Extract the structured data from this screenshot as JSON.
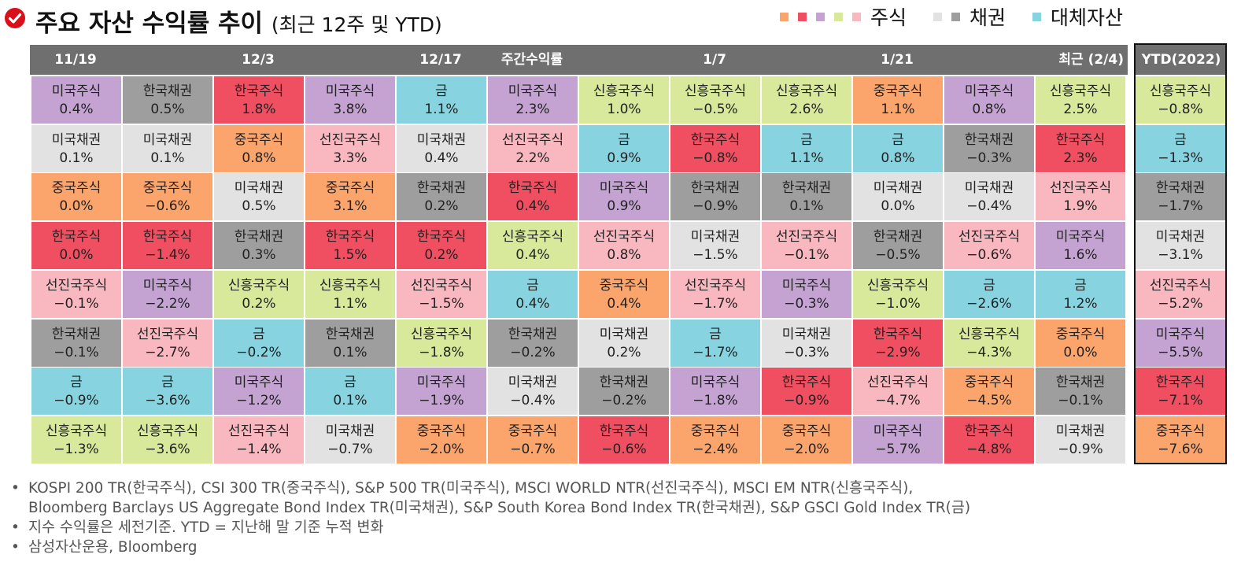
{
  "title": "주요 자산 수익률 추이",
  "subtitle": "(최근 12주 및 YTD)",
  "legend": [
    {
      "label": "주식",
      "colors": [
        "#fba56d",
        "#ef4f60",
        "#c4a3d3",
        "#d8e99c",
        "#f9b8c0"
      ]
    },
    {
      "label": "채권",
      "colors": [
        "#e2e2e2",
        "#9e9e9e"
      ]
    },
    {
      "label": "대체자산",
      "colors": [
        "#87d4e0"
      ]
    }
  ],
  "colors": {
    "한국주식": "#ef4f60",
    "중국주식": "#fba56d",
    "미국주식": "#c4a3d3",
    "선진국주식": "#f9b8c0",
    "신흥국주식": "#d8e99c",
    "미국채권": "#e2e2e2",
    "한국채권": "#9e9e9e",
    "금": "#87d4e0",
    "header": "#6f6f6f",
    "accent": "#d8101c"
  },
  "chart_data": {
    "type": "table",
    "title": "주요 자산 수익률 추이 (최근 12주 및 YTD)",
    "header_labels": [
      {
        "text": "11/19",
        "col": 0,
        "align": "center"
      },
      {
        "text": "12/3",
        "col": 2,
        "align": "center"
      },
      {
        "text": "12/17",
        "col": 4,
        "align": "center"
      },
      {
        "text": "주간수익률",
        "col": 5,
        "align": "center"
      },
      {
        "text": "1/7",
        "col": 7,
        "align": "center"
      },
      {
        "text": "1/21",
        "col": 9,
        "align": "center"
      },
      {
        "text": "최근 (2/4)",
        "col": 11,
        "align": "right"
      }
    ],
    "ytd_label": "YTD(2022)",
    "weeks": [
      [
        [
          "미국주식",
          "0.4%"
        ],
        [
          "미국채권",
          "0.1%"
        ],
        [
          "중국주식",
          "0.0%"
        ],
        [
          "한국주식",
          "0.0%"
        ],
        [
          "선진국주식",
          "-0.1%"
        ],
        [
          "한국채권",
          "-0.1%"
        ],
        [
          "금",
          "-0.9%"
        ],
        [
          "신흥국주식",
          "-1.3%"
        ]
      ],
      [
        [
          "한국채권",
          "0.5%"
        ],
        [
          "미국채권",
          "0.1%"
        ],
        [
          "중국주식",
          "-0.6%"
        ],
        [
          "한국주식",
          "-1.4%"
        ],
        [
          "미국주식",
          "-2.2%"
        ],
        [
          "선진국주식",
          "-2.7%"
        ],
        [
          "금",
          "-3.6%"
        ],
        [
          "신흥국주식",
          "-3.6%"
        ]
      ],
      [
        [
          "한국주식",
          "1.8%"
        ],
        [
          "중국주식",
          "0.8%"
        ],
        [
          "미국채권",
          "0.5%"
        ],
        [
          "한국채권",
          "0.3%"
        ],
        [
          "신흥국주식",
          "0.2%"
        ],
        [
          "금",
          "-0.2%"
        ],
        [
          "미국주식",
          "-1.2%"
        ],
        [
          "선진국주식",
          "-1.4%"
        ]
      ],
      [
        [
          "미국주식",
          "3.8%"
        ],
        [
          "선진국주식",
          "3.3%"
        ],
        [
          "중국주식",
          "3.1%"
        ],
        [
          "한국주식",
          "1.5%"
        ],
        [
          "신흥국주식",
          "1.1%"
        ],
        [
          "한국채권",
          "0.1%"
        ],
        [
          "금",
          "0.1%"
        ],
        [
          "미국채권",
          "-0.7%"
        ]
      ],
      [
        [
          "금",
          "1.1%"
        ],
        [
          "미국채권",
          "0.4%"
        ],
        [
          "한국채권",
          "0.2%"
        ],
        [
          "한국주식",
          "0.2%"
        ],
        [
          "선진국주식",
          "-1.5%"
        ],
        [
          "신흥국주식",
          "-1.8%"
        ],
        [
          "미국주식",
          "-1.9%"
        ],
        [
          "중국주식",
          "-2.0%"
        ]
      ],
      [
        [
          "미국주식",
          "2.3%"
        ],
        [
          "선진국주식",
          "2.2%"
        ],
        [
          "한국주식",
          "0.4%"
        ],
        [
          "신흥국주식",
          "0.4%"
        ],
        [
          "금",
          "0.4%"
        ],
        [
          "한국채권",
          "-0.2%"
        ],
        [
          "미국채권",
          "-0.4%"
        ],
        [
          "중국주식",
          "-0.7%"
        ]
      ],
      [
        [
          "신흥국주식",
          "1.0%"
        ],
        [
          "금",
          "0.9%"
        ],
        [
          "미국주식",
          "0.9%"
        ],
        [
          "선진국주식",
          "0.8%"
        ],
        [
          "중국주식",
          "0.4%"
        ],
        [
          "미국채권",
          "0.2%"
        ],
        [
          "한국채권",
          "-0.2%"
        ],
        [
          "한국주식",
          "-0.6%"
        ]
      ],
      [
        [
          "신흥국주식",
          "-0.5%"
        ],
        [
          "한국주식",
          "-0.8%"
        ],
        [
          "한국채권",
          "-0.9%"
        ],
        [
          "미국채권",
          "-1.5%"
        ],
        [
          "선진국주식",
          "-1.7%"
        ],
        [
          "금",
          "-1.7%"
        ],
        [
          "미국주식",
          "-1.8%"
        ],
        [
          "중국주식",
          "-2.4%"
        ]
      ],
      [
        [
          "신흥국주식",
          "2.6%"
        ],
        [
          "금",
          "1.1%"
        ],
        [
          "한국채권",
          "0.1%"
        ],
        [
          "선진국주식",
          "-0.1%"
        ],
        [
          "미국주식",
          "-0.3%"
        ],
        [
          "미국채권",
          "-0.3%"
        ],
        [
          "한국주식",
          "-0.9%"
        ],
        [
          "중국주식",
          "-2.0%"
        ]
      ],
      [
        [
          "중국주식",
          "1.1%"
        ],
        [
          "금",
          "0.8%"
        ],
        [
          "미국채권",
          "0.0%"
        ],
        [
          "한국채권",
          "-0.5%"
        ],
        [
          "신흥국주식",
          "-1.0%"
        ],
        [
          "한국주식",
          "-2.9%"
        ],
        [
          "선진국주식",
          "-4.7%"
        ],
        [
          "미국주식",
          "-5.7%"
        ]
      ],
      [
        [
          "미국주식",
          "0.8%"
        ],
        [
          "한국채권",
          "-0.3%"
        ],
        [
          "미국채권",
          "-0.4%"
        ],
        [
          "선진국주식",
          "-0.6%"
        ],
        [
          "금",
          "-2.6%"
        ],
        [
          "신흥국주식",
          "-4.3%"
        ],
        [
          "중국주식",
          "-4.5%"
        ],
        [
          "한국주식",
          "-4.8%"
        ]
      ],
      [
        [
          "신흥국주식",
          "2.5%"
        ],
        [
          "한국주식",
          "2.3%"
        ],
        [
          "선진국주식",
          "1.9%"
        ],
        [
          "미국주식",
          "1.6%"
        ],
        [
          "금",
          "1.2%"
        ],
        [
          "중국주식",
          "0.0%"
        ],
        [
          "한국채권",
          "-0.1%"
        ],
        [
          "미국채권",
          "-0.9%"
        ]
      ]
    ],
    "ytd": [
      [
        "신흥국주식",
        "-0.8%"
      ],
      [
        "금",
        "-1.3%"
      ],
      [
        "한국채권",
        "-1.7%"
      ],
      [
        "미국채권",
        "-3.1%"
      ],
      [
        "선진국주식",
        "-5.2%"
      ],
      [
        "미국주식",
        "-5.5%"
      ],
      [
        "한국주식",
        "-7.1%"
      ],
      [
        "중국주식",
        "-7.6%"
      ]
    ]
  },
  "notes": [
    "KOSPI 200 TR(한국주식), CSI 300 TR(중국주식), S&P 500 TR(미국주식), MSCI WORLD NTR(선진국주식), MSCI EM NTR(신흥국주식),",
    "Bloomberg Barclays US Aggregate Bond Index TR(미국채권), S&P South Korea Bond Index TR(한국채권), S&P GSCI Gold Index TR(금)",
    "지수 수익률은 세전기준. YTD = 지난해 말 기준 누적 변화",
    "삼성자산운용, Bloomberg"
  ]
}
